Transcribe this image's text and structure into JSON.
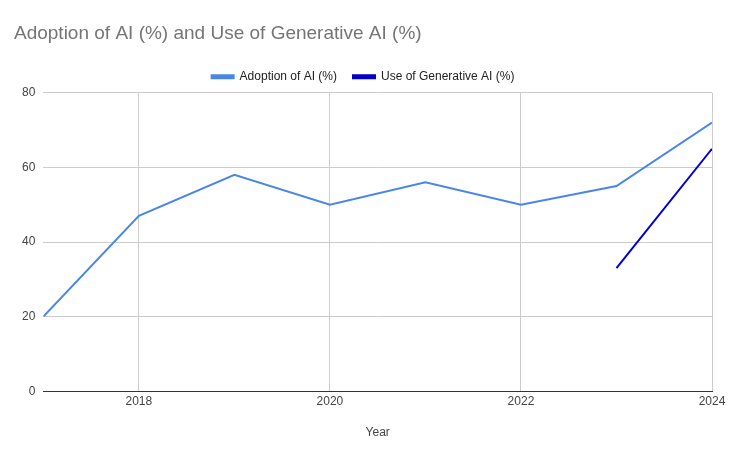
{
  "chart_data": {
    "type": "line",
    "title": "Adoption of AI (%) and Use of Generative AI (%)",
    "x_label": "Year",
    "x": [
      2017,
      2018,
      2019,
      2020,
      2021,
      2022,
      2023,
      2024
    ],
    "series": [
      {
        "name": "Adoption of AI (%)",
        "color": "#4a86e8",
        "values": [
          20,
          47,
          58,
          50,
          56,
          50,
          55,
          72
        ]
      },
      {
        "name": "Use of Generative AI (%)",
        "color": "#0000cc",
        "values": [
          null,
          null,
          null,
          null,
          null,
          null,
          33,
          65
        ]
      }
    ],
    "xlim": [
      2017,
      2024
    ],
    "xticks": [
      2018,
      2020,
      2022,
      2024
    ],
    "ylim": [
      0,
      80
    ],
    "yticks": [
      0,
      20,
      40,
      60,
      80
    ],
    "grid": true,
    "legend": "top"
  }
}
